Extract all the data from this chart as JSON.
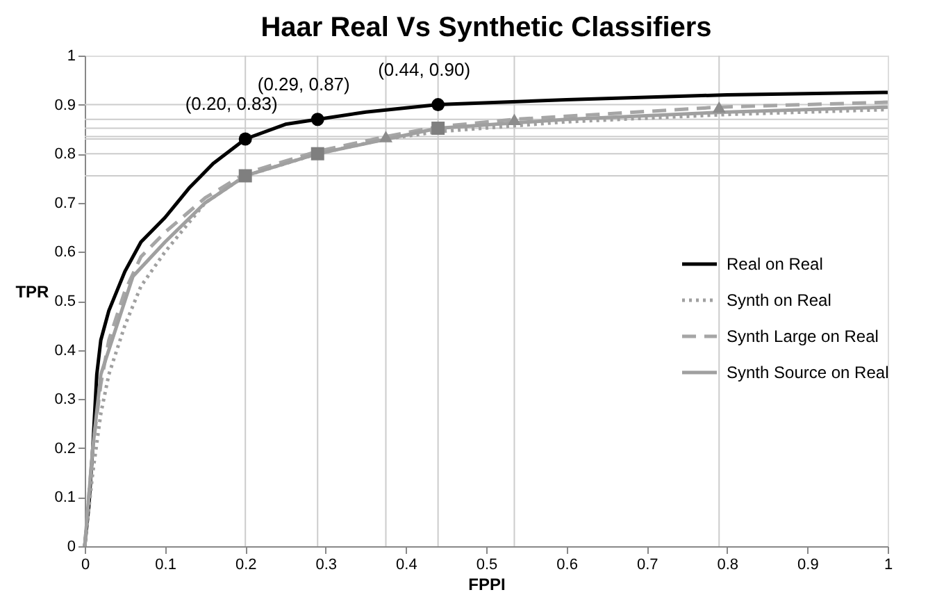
{
  "chart_data": {
    "type": "line",
    "title": "Haar Real Vs Synthetic Classifiers",
    "xlabel": "FPPI",
    "ylabel": "TPR",
    "xlim": [
      0,
      1
    ],
    "ylim": [
      0,
      1
    ],
    "xticks": [
      0,
      0.1,
      0.2,
      0.3,
      0.4,
      0.5,
      0.6,
      0.7,
      0.8,
      0.9,
      1
    ],
    "yticks": [
      0,
      0.1,
      0.2,
      0.3,
      0.4,
      0.5,
      0.6,
      0.7,
      0.8,
      0.9,
      1
    ],
    "grid": false,
    "legend": "right",
    "series": [
      {
        "name": "Real on Real",
        "color": "#000000",
        "line_style": "solid",
        "x": [
          0,
          0.005,
          0.01,
          0.015,
          0.02,
          0.03,
          0.05,
          0.07,
          0.1,
          0.13,
          0.16,
          0.2,
          0.25,
          0.29,
          0.35,
          0.44,
          0.6,
          0.8,
          1
        ],
        "values": [
          0,
          0.08,
          0.2,
          0.35,
          0.42,
          0.48,
          0.56,
          0.62,
          0.67,
          0.73,
          0.78,
          0.83,
          0.86,
          0.87,
          0.885,
          0.9,
          0.91,
          0.92,
          0.925
        ]
      },
      {
        "name": "Synth on Real",
        "color": "#a0a0a0",
        "line_style": "dotted",
        "x": [
          0,
          0.01,
          0.02,
          0.03,
          0.05,
          0.07,
          0.1,
          0.15,
          0.2,
          0.29,
          0.375,
          0.44,
          0.6,
          0.8,
          1
        ],
        "values": [
          0,
          0.15,
          0.27,
          0.35,
          0.45,
          0.53,
          0.6,
          0.7,
          0.755,
          0.8,
          0.83,
          0.845,
          0.865,
          0.88,
          0.89
        ]
      },
      {
        "name": "Synth Large on Real",
        "color": "#a6a6a6",
        "line_style": "dashed",
        "x": [
          0,
          0.01,
          0.02,
          0.03,
          0.05,
          0.07,
          0.1,
          0.15,
          0.2,
          0.29,
          0.375,
          0.44,
          0.535,
          0.79,
          1
        ],
        "values": [
          0,
          0.2,
          0.33,
          0.42,
          0.52,
          0.59,
          0.64,
          0.71,
          0.76,
          0.805,
          0.835,
          0.855,
          0.87,
          0.895,
          0.905
        ]
      },
      {
        "name": "Synth Source on Real",
        "color": "#a0a0a0",
        "line_style": "solid",
        "x": [
          0,
          0.01,
          0.02,
          0.03,
          0.05,
          0.06,
          0.1,
          0.15,
          0.2,
          0.29,
          0.44,
          0.6,
          0.8,
          1
        ],
        "values": [
          0,
          0.2,
          0.35,
          0.4,
          0.5,
          0.55,
          0.62,
          0.7,
          0.755,
          0.8,
          0.852,
          0.87,
          0.885,
          0.895
        ]
      },
      {
        "type": "scatter",
        "marker": "circle",
        "color": "#000000",
        "x": [
          0.2,
          0.29,
          0.44
        ],
        "values": [
          0.83,
          0.87,
          0.9
        ]
      },
      {
        "type": "scatter",
        "marker": "square",
        "color": "#7f7f7f",
        "x": [
          0.2,
          0.29,
          0.44
        ],
        "values": [
          0.755,
          0.8,
          0.852
        ]
      },
      {
        "type": "scatter",
        "marker": "triangle",
        "color": "#8c8c8c",
        "x": [
          0.375,
          0.535,
          0.79
        ],
        "values": [
          0.835,
          0.87,
          0.895
        ]
      }
    ],
    "ref_lines": [
      {
        "axis": "x",
        "value": 0.2
      },
      {
        "axis": "x",
        "value": 0.29
      },
      {
        "axis": "x",
        "value": 0.375
      },
      {
        "axis": "x",
        "value": 0.44
      },
      {
        "axis": "x",
        "value": 0.535
      },
      {
        "axis": "x",
        "value": 0.79
      },
      {
        "axis": "y",
        "value": 0.755
      },
      {
        "axis": "y",
        "value": 0.8
      },
      {
        "axis": "y",
        "value": 0.83
      },
      {
        "axis": "y",
        "value": 0.835
      },
      {
        "axis": "y",
        "value": 0.852
      },
      {
        "axis": "y",
        "value": 0.87
      },
      {
        "axis": "y",
        "value": 0.9
      }
    ],
    "annotations": [
      {
        "text": "(0.20, 0.83)",
        "x": 0.2,
        "y": 0.83
      },
      {
        "text": "(0.29, 0.87)",
        "x": 0.29,
        "y": 0.87
      },
      {
        "text": "(0.44, 0.90)",
        "x": 0.44,
        "y": 0.9
      }
    ]
  }
}
